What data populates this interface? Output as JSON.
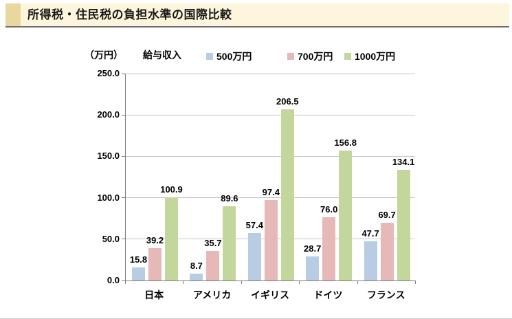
{
  "chart_data": {
    "type": "bar",
    "title": "所得税・住民税の負担水準の国際比較",
    "unit_label": "（万円）",
    "legend_title": "給与収入",
    "legend_position": "top",
    "grid": true,
    "value_labels": true,
    "ylim": [
      0,
      250
    ],
    "yticks": [
      0,
      50,
      100,
      150,
      200,
      250
    ],
    "ytick_format": "one-decimal",
    "categories": [
      "日本",
      "アメリカ",
      "イギリス",
      "ドイツ",
      "フランス"
    ],
    "series": [
      {
        "name": "500万円",
        "color": "#b8cce4",
        "values": [
          15.8,
          8.7,
          57.4,
          28.7,
          47.7
        ]
      },
      {
        "name": "700万円",
        "color": "#e6b8b7",
        "values": [
          39.2,
          35.7,
          97.4,
          76.0,
          69.7
        ]
      },
      {
        "name": "1000万円",
        "color": "#c3d69b",
        "values": [
          100.9,
          89.6,
          206.5,
          156.8,
          134.1
        ]
      }
    ]
  },
  "theme": {
    "title_bar_bg": "#fdf6dc",
    "title_bar_accent": "#e8d8a0",
    "title_underline": "#6e6e6e",
    "axis_color": "#7a7a7a",
    "gridline_color": "#c4c4c4",
    "text_color": "#000000",
    "page_bottom_divider": "#cccccc"
  }
}
